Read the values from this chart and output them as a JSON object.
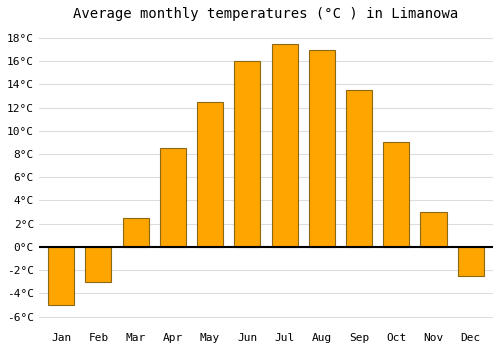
{
  "title": "Average monthly temperatures (°C ) in Limanowa",
  "months": [
    "Jan",
    "Feb",
    "Mar",
    "Apr",
    "May",
    "Jun",
    "Jul",
    "Aug",
    "Sep",
    "Oct",
    "Nov",
    "Dec"
  ],
  "values": [
    -5.0,
    -3.0,
    2.5,
    8.5,
    12.5,
    16.0,
    17.5,
    17.0,
    13.5,
    9.0,
    3.0,
    -2.5
  ],
  "bar_color": "#FFA500",
  "bar_edge_color": "#8B6914",
  "ylim": [
    -7,
    19
  ],
  "yticks": [
    -6,
    -4,
    -2,
    0,
    2,
    4,
    6,
    8,
    10,
    12,
    14,
    16,
    18
  ],
  "ytick_labels": [
    "-6°C",
    "-4°C",
    "-2°C",
    "0°C",
    "2°C",
    "4°C",
    "6°C",
    "8°C",
    "10°C",
    "12°C",
    "14°C",
    "16°C",
    "18°C"
  ],
  "background_color": "#ffffff",
  "grid_color": "#dddddd",
  "title_fontsize": 10,
  "tick_fontsize": 8,
  "bar_width": 0.7
}
